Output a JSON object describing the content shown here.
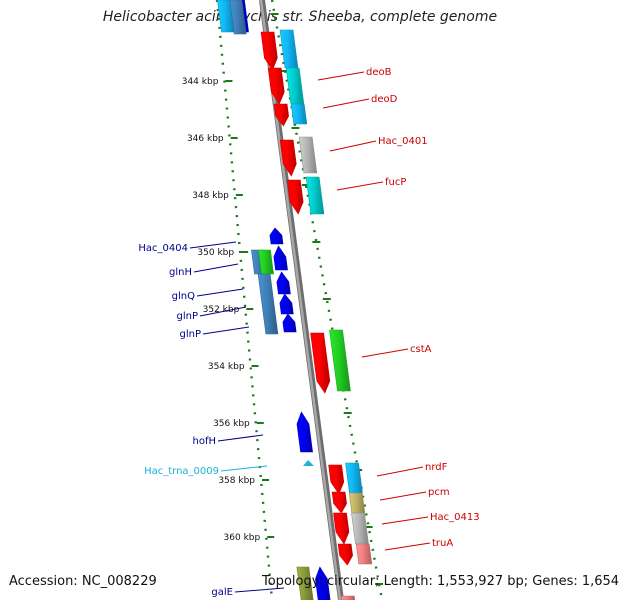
{
  "title": "Helicobacter acinonychis str. Sheeba, complete genome",
  "footer": {
    "accession": "Accession: NC_008229",
    "summary": "Topology: circular; Length: 1,553,927 bp; Genes: 1,654"
  },
  "colors": {
    "backbone": "#8c8c8c",
    "dotted_track": "#1a7a1a",
    "tick": "#1a7a1a",
    "forward_label": "#cc0000",
    "reverse_label": "#00008b",
    "trna_label": "#1ab2d9",
    "red": "#ff0000",
    "cyan": "#00cccc",
    "skyblue": "#11b5f5",
    "green": "#22cc22",
    "blue": "#0000ee",
    "steel": "#3f7fb8",
    "gray": "#b5b5b5",
    "khaki": "#bfb066",
    "pink": "#f08080",
    "olive": "#8c9a3a"
  },
  "ticks": [
    {
      "label": "344 kbp"
    },
    {
      "label": "346 kbp"
    },
    {
      "label": "348 kbp"
    },
    {
      "label": "350 kbp"
    },
    {
      "label": "352 kbp"
    },
    {
      "label": "354 kbp"
    },
    {
      "label": "356 kbp"
    },
    {
      "label": "358 kbp"
    },
    {
      "label": "360 kbp"
    }
  ],
  "forward_labels": [
    {
      "text": "deoB"
    },
    {
      "text": "deoD"
    },
    {
      "text": "Hac_0401"
    },
    {
      "text": "fucP"
    },
    {
      "text": "cstA"
    },
    {
      "text": "nrdF"
    },
    {
      "text": "pcm"
    },
    {
      "text": "Hac_0413"
    },
    {
      "text": "truA"
    }
  ],
  "reverse_labels": [
    {
      "text": "Hac_0404"
    },
    {
      "text": "glnH"
    },
    {
      "text": "glnQ"
    },
    {
      "text": "glnP"
    },
    {
      "text": "glnP"
    },
    {
      "text": "hofH"
    },
    {
      "text": "Hac_trna_0009"
    },
    {
      "text": "galE"
    }
  ]
}
